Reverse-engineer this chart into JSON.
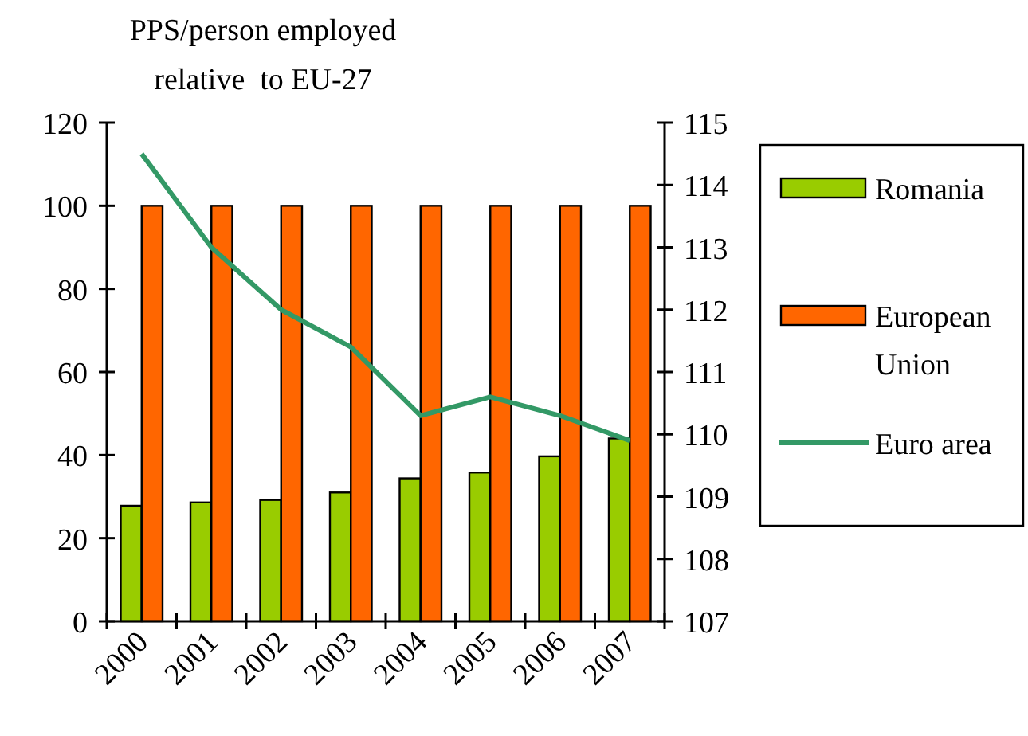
{
  "chart_data": {
    "type": "bar",
    "title": "PPS/person employed relative  to EU-27",
    "categories": [
      "2000",
      "2001",
      "2002",
      "2003",
      "2004",
      "2005",
      "2006",
      "2007"
    ],
    "series": [
      {
        "name": "Romania",
        "color": "#99cc00",
        "values": [
          27.8,
          28.6,
          29.2,
          31,
          34.4,
          35.8,
          39.7,
          44
        ]
      },
      {
        "name": "European Union",
        "color": "#ff6600",
        "values": [
          100,
          100,
          100,
          100,
          100,
          100,
          100,
          100
        ]
      },
      {
        "name": "Euro area",
        "type": "line",
        "axis": "y2",
        "color": "#339966",
        "values": [
          114.5,
          113,
          112,
          111.4,
          110.3,
          110.6,
          110.3,
          109.9
        ]
      }
    ],
    "ylim": [
      0,
      120
    ],
    "yticks": [
      0,
      20,
      40,
      60,
      80,
      100,
      120
    ],
    "y2lim": [
      107,
      115
    ],
    "y2ticks": [
      107,
      108,
      109,
      110,
      111,
      112,
      113,
      114,
      115
    ],
    "grid": false,
    "legend": "right"
  }
}
